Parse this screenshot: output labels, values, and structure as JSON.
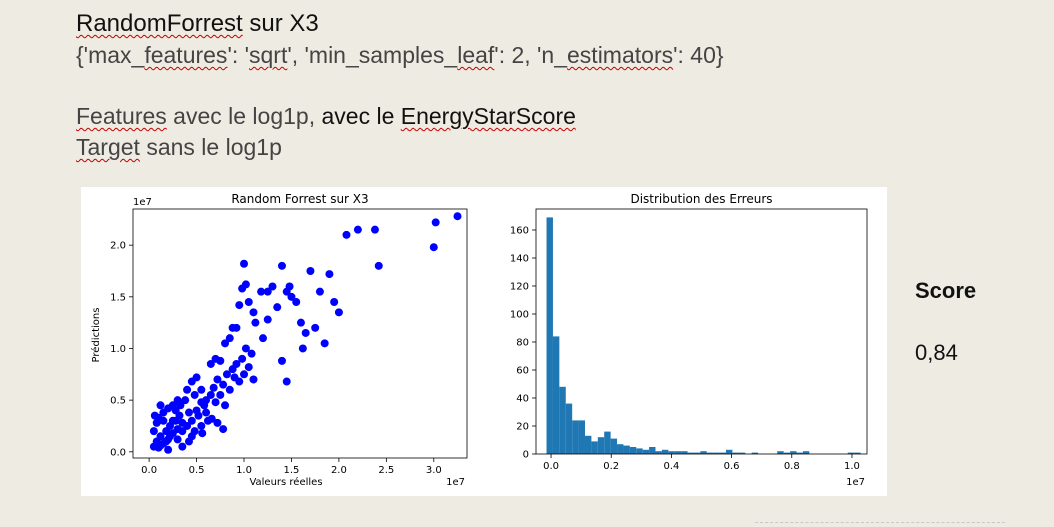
{
  "header": {
    "title_part1": "RandomForrest",
    "title_part2": " sur X3",
    "params_p1": "{'max_",
    "params_p2": "features",
    "params_p3": "': '",
    "params_p4": "sqrt",
    "params_p5": "', 'min_samples_",
    "params_p6": "leaf",
    "params_p7": "': 2, 'n_",
    "params_p8": "estimators",
    "params_p9": "': 40}",
    "features_p1": "Features",
    "features_p2": " avec le log1p, ",
    "features_p3": "avec le ",
    "features_p4": "EnergyStarScore",
    "target_p1": "Target",
    "target_p2": " sans le log1p"
  },
  "score": {
    "label": "Score",
    "value": "0,84"
  },
  "colors": {
    "scatter_points": "#0000ff",
    "histogram_bars": "#1f77b4",
    "background": "#eeebe2"
  },
  "chart_data": [
    {
      "type": "scatter",
      "title": "Random Forrest sur X3",
      "xlabel": "Valeurs réelles",
      "ylabel": "Prédictions",
      "x_offset_label": "1e7",
      "y_offset_label": "1e7",
      "xlim": [
        -0.17,
        3.35
      ],
      "ylim": [
        -0.06,
        2.35
      ],
      "xticks": [
        0.0,
        0.5,
        1.0,
        1.5,
        2.0,
        2.5,
        3.0
      ],
      "xtick_labels": [
        "0.0",
        "0.5",
        "1.0",
        "1.5",
        "2.0",
        "2.5",
        "3.0"
      ],
      "yticks": [
        0.0,
        0.5,
        1.0,
        1.5,
        2.0
      ],
      "ytick_labels": [
        "0.0",
        "0.5",
        "1.0",
        "1.5",
        "2.0"
      ],
      "grid": false,
      "points": [
        [
          0.05,
          0.05
        ],
        [
          0.08,
          0.1
        ],
        [
          0.1,
          0.04
        ],
        [
          0.12,
          0.15
        ],
        [
          0.15,
          0.08
        ],
        [
          0.18,
          0.2
        ],
        [
          0.2,
          0.12
        ],
        [
          0.22,
          0.25
        ],
        [
          0.25,
          0.18
        ],
        [
          0.28,
          0.3
        ],
        [
          0.3,
          0.22
        ],
        [
          0.32,
          0.35
        ],
        [
          0.35,
          0.28
        ],
        [
          0.05,
          0.2
        ],
        [
          0.08,
          0.28
        ],
        [
          0.1,
          0.33
        ],
        [
          0.12,
          0.06
        ],
        [
          0.15,
          0.38
        ],
        [
          0.18,
          0.1
        ],
        [
          0.2,
          0.42
        ],
        [
          0.22,
          0.15
        ],
        [
          0.25,
          0.3
        ],
        [
          0.28,
          0.4
        ],
        [
          0.3,
          0.12
        ],
        [
          0.33,
          0.45
        ],
        [
          0.35,
          0.2
        ],
        [
          0.38,
          0.5
        ],
        [
          0.4,
          0.25
        ],
        [
          0.42,
          0.38
        ],
        [
          0.45,
          0.3
        ],
        [
          0.48,
          0.55
        ],
        [
          0.5,
          0.4
        ],
        [
          0.52,
          0.35
        ],
        [
          0.55,
          0.6
        ],
        [
          0.58,
          0.45
        ],
        [
          0.6,
          0.5
        ],
        [
          0.4,
          0.6
        ],
        [
          0.45,
          0.68
        ],
        [
          0.5,
          0.72
        ],
        [
          0.55,
          0.48
        ],
        [
          0.6,
          0.38
        ],
        [
          0.65,
          0.55
        ],
        [
          0.68,
          0.62
        ],
        [
          0.7,
          0.48
        ],
        [
          0.72,
          0.7
        ],
        [
          0.75,
          0.55
        ],
        [
          0.78,
          0.65
        ],
        [
          0.8,
          0.45
        ],
        [
          0.82,
          0.75
        ],
        [
          0.85,
          0.6
        ],
        [
          0.88,
          0.8
        ],
        [
          0.9,
          0.72
        ],
        [
          0.92,
          0.85
        ],
        [
          0.95,
          0.68
        ],
        [
          0.98,
          0.9
        ],
        [
          1.0,
          0.75
        ],
        [
          1.02,
          1.0
        ],
        [
          1.05,
          0.82
        ],
        [
          1.08,
          0.95
        ],
        [
          1.1,
          0.7
        ],
        [
          0.62,
          0.3
        ],
        [
          0.66,
          0.32
        ],
        [
          0.72,
          0.28
        ],
        [
          0.78,
          0.22
        ],
        [
          0.56,
          0.18
        ],
        [
          0.48,
          0.2
        ],
        [
          0.65,
          0.85
        ],
        [
          0.7,
          0.9
        ],
        [
          0.75,
          0.88
        ],
        [
          0.8,
          1.05
        ],
        [
          0.85,
          1.1
        ],
        [
          0.88,
          1.2
        ],
        [
          0.92,
          1.2
        ],
        [
          0.95,
          1.42
        ],
        [
          0.98,
          1.58
        ],
        [
          1.0,
          1.82
        ],
        [
          1.02,
          1.62
        ],
        [
          1.05,
          1.45
        ],
        [
          1.1,
          1.35
        ],
        [
          1.12,
          1.25
        ],
        [
          1.18,
          1.55
        ],
        [
          1.2,
          1.1
        ],
        [
          1.25,
          1.28
        ],
        [
          1.3,
          1.6
        ],
        [
          1.35,
          1.4
        ],
        [
          1.4,
          1.8
        ],
        [
          1.45,
          1.55
        ],
        [
          1.48,
          1.6
        ],
        [
          1.5,
          1.5
        ],
        [
          1.55,
          1.45
        ],
        [
          1.6,
          1.25
        ],
        [
          1.62,
          1.0
        ],
        [
          1.65,
          1.15
        ],
        [
          1.7,
          1.75
        ],
        [
          1.75,
          1.2
        ],
        [
          1.8,
          1.55
        ],
        [
          1.85,
          1.05
        ],
        [
          1.9,
          1.72
        ],
        [
          1.95,
          1.45
        ],
        [
          2.0,
          1.35
        ],
        [
          1.4,
          0.88
        ],
        [
          1.45,
          0.68
        ],
        [
          2.08,
          2.1
        ],
        [
          2.2,
          2.15
        ],
        [
          2.38,
          2.15
        ],
        [
          2.42,
          1.8
        ],
        [
          3.0,
          1.98
        ],
        [
          3.02,
          2.22
        ],
        [
          3.25,
          2.28
        ],
        [
          1.25,
          1.55
        ],
        [
          0.2,
          0.02
        ],
        [
          0.35,
          0.05
        ],
        [
          0.42,
          0.1
        ],
        [
          0.15,
          0.3
        ],
        [
          0.25,
          0.45
        ],
        [
          0.3,
          0.5
        ],
        [
          0.12,
          0.45
        ],
        [
          0.06,
          0.35
        ],
        [
          0.55,
          0.25
        ],
        [
          0.45,
          0.15
        ]
      ]
    },
    {
      "type": "bar",
      "title": "Distribution des Erreurs",
      "x_offset_label": "1e7",
      "xlim": [
        -0.05,
        1.05
      ],
      "ylim": [
        0,
        175
      ],
      "xticks": [
        0.0,
        0.2,
        0.4,
        0.6,
        0.8,
        1.0
      ],
      "xtick_labels": [
        "0.0",
        "0.2",
        "0.4",
        "0.6",
        "0.8",
        "1.0"
      ],
      "yticks": [
        0,
        20,
        40,
        60,
        80,
        100,
        120,
        140,
        160
      ],
      "ytick_labels": [
        "0",
        "20",
        "40",
        "60",
        "80",
        "100",
        "120",
        "140",
        "160"
      ],
      "grid": false,
      "bin_start": -0.015,
      "bin_width": 0.0213,
      "values": [
        169,
        84,
        48,
        36,
        24,
        24,
        13,
        9,
        12,
        16,
        11,
        7,
        6,
        5,
        4,
        3,
        5,
        2,
        3,
        2,
        2,
        2,
        1,
        1,
        2,
        1,
        1,
        1,
        3,
        1,
        1,
        0,
        1,
        0,
        0,
        0,
        2,
        1,
        2,
        1,
        2,
        0,
        0,
        0,
        0,
        0,
        0,
        1,
        1
      ]
    }
  ]
}
